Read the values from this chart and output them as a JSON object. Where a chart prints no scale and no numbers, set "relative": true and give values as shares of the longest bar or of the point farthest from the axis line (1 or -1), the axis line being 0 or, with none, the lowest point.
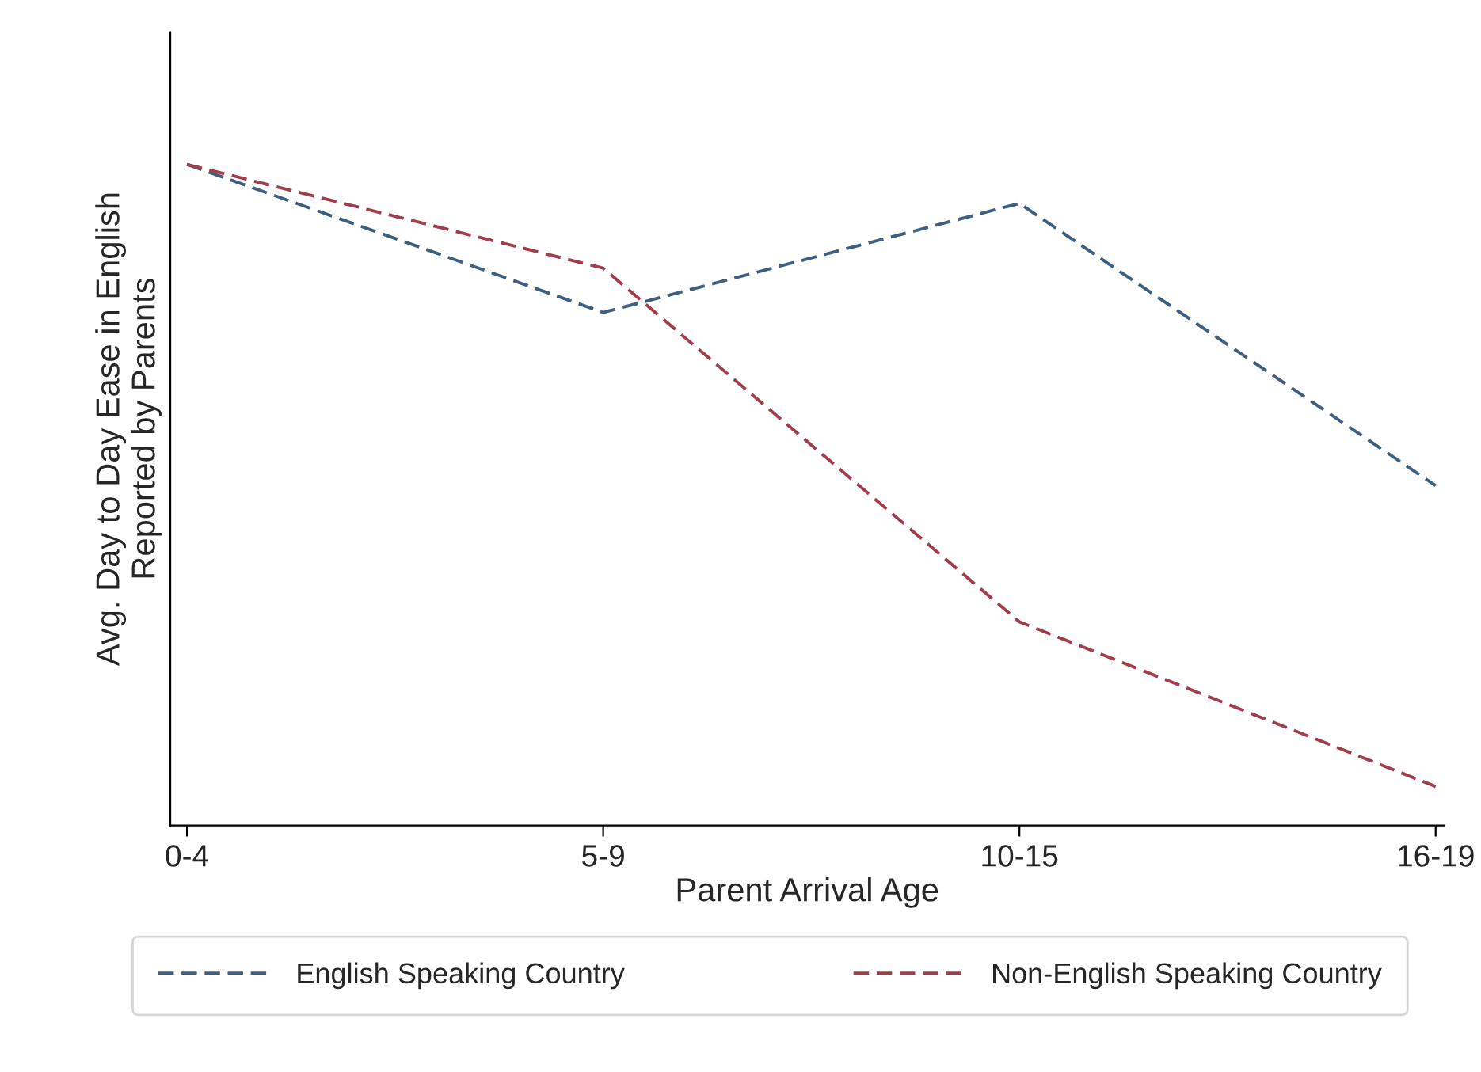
{
  "chart_data": {
    "type": "line",
    "relative": true,
    "xlabel": "Parent Arrival Age",
    "ylabel": "Avg. Day to Day Ease in English\nReported by Parents",
    "categories": [
      "0-4",
      "5-9",
      "10-15",
      "16-19"
    ],
    "series": [
      {
        "name": "English Speaking Country",
        "color": "#3d5f82",
        "values": [
          1,
          0.776,
          0.941,
          0.514
        ]
      },
      {
        "name": "Non-English Speaking Country",
        "color": "#a23d4b",
        "values": [
          1,
          0.843,
          0.308,
          0.059
        ]
      }
    ],
    "line_style": "dashed",
    "marker": "none",
    "legend": "bottom",
    "grid": false
  }
}
